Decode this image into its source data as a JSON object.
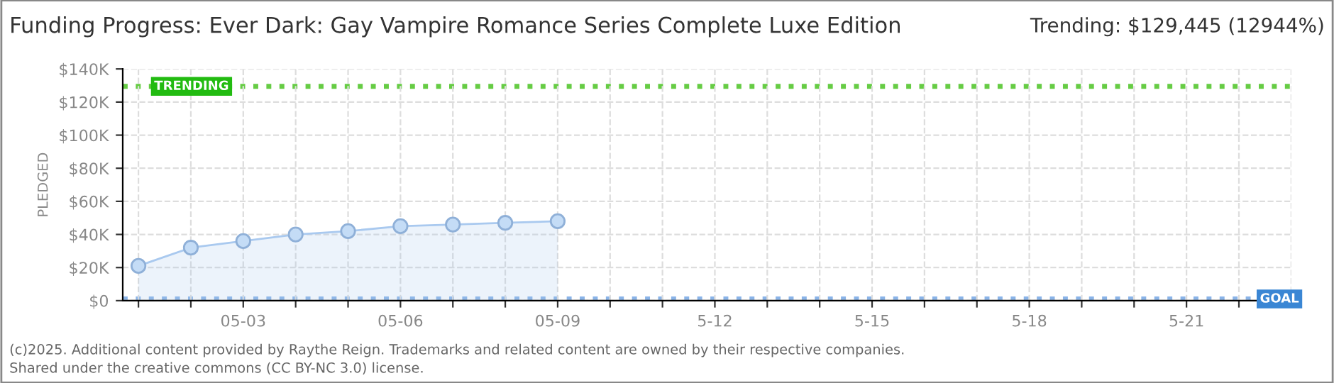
{
  "chart_data": {
    "type": "area",
    "title": "Funding Progress: Ever Dark: Gay Vampire Romance Series Complete Luxe Edition",
    "subtitle": "Trending: $129,445 (12944%)",
    "ylabel": "PLEDGED",
    "categories": [
      null,
      null,
      "05-03",
      null,
      null,
      "05-06",
      null,
      null,
      "05-09",
      null,
      null,
      "5-12",
      null,
      null,
      "5-15",
      null,
      null,
      "5-18",
      null,
      null,
      "5-21",
      null,
      null
    ],
    "series": [
      {
        "color": "#a9c9ef",
        "values": [
          21000,
          32000,
          36000,
          40000,
          42000,
          45000,
          46000,
          47000,
          48000,
          null,
          null,
          null,
          null,
          null,
          null,
          null,
          null,
          null,
          null,
          null,
          null,
          null,
          null
        ]
      }
    ],
    "ylim": [
      0,
      140000
    ],
    "yticks": [
      {
        "value": 0,
        "label": "$0"
      },
      {
        "value": 20000,
        "label": "$20K"
      },
      {
        "value": 40000,
        "label": "$40K"
      },
      {
        "value": 60000,
        "label": "$60K"
      },
      {
        "value": 80000,
        "label": "$80K"
      },
      {
        "value": 100000,
        "label": "$100K"
      },
      {
        "value": 120000,
        "label": "$120K"
      },
      {
        "value": 140000,
        "label": "$140K"
      }
    ],
    "ref_lines": [
      {
        "axis": "y",
        "value": 129445,
        "label": "TRENDING",
        "color": "#66cc44",
        "line_style": "dotted"
      },
      {
        "axis": "y",
        "value": 1000,
        "label": "GOAL",
        "color": "#8ab4e8",
        "line_style": "dotted"
      }
    ],
    "grid": true,
    "marker": "circle",
    "annotations": [
      "(c)2025. Additional content provided by Raythe Reign. Trademarks and related content are owned by their respective companies.",
      "Shared under the creative commons (CC BY-NC 3.0) license."
    ]
  }
}
